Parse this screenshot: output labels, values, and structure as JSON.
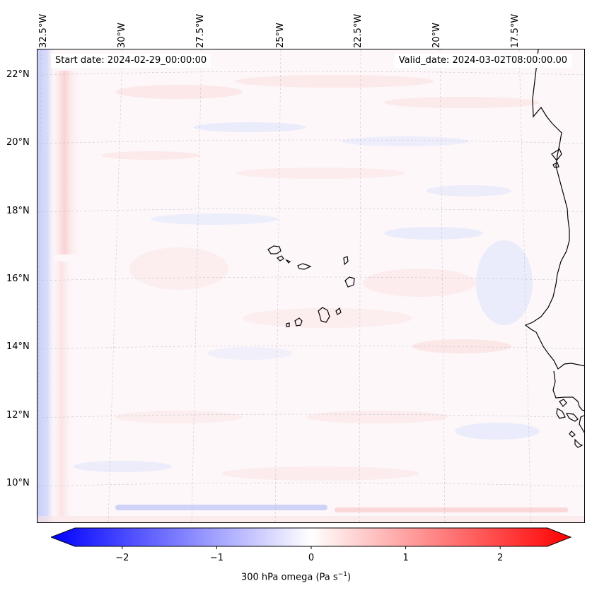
{
  "header": {
    "start_date": "Start date: 2024-02-29_00:00:00",
    "valid_date": "Valid_date: 2024-03-02T08:00:00.00"
  },
  "lon_ticks": [
    "32.5°W",
    "30°W",
    "27.5°W",
    "25°W",
    "22.5°W",
    "20°W",
    "17.5°W"
  ],
  "lat_ticks": [
    "22°N",
    "20°N",
    "18°N",
    "16°N",
    "14°N",
    "12°N",
    "10°N"
  ],
  "colorbar": {
    "ticks": [
      "−2",
      "−1",
      "0",
      "1",
      "2"
    ],
    "range": [
      -2.75,
      2.75
    ],
    "label_text": "300 hPa omega (Pa s",
    "label_sup": "−1",
    "label_end": ")",
    "low_color": "#0000ff",
    "mid_color": "#ffffff",
    "high_color": "#ff0000"
  }
}
